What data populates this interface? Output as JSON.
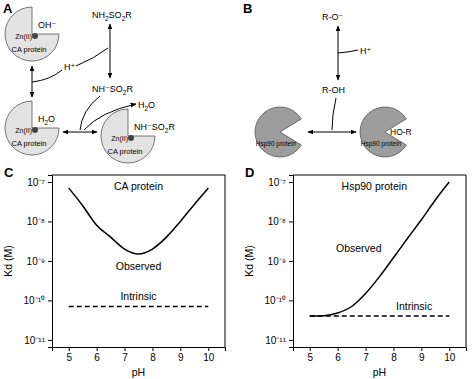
{
  "chart_data": [
    {
      "type": "line",
      "panel": "C",
      "title": "CA protein",
      "x_label": "pH",
      "y_label": "Kd (M)",
      "log": "y",
      "x": [
        5,
        5.5,
        6,
        6.5,
        7,
        7.5,
        8,
        8.5,
        9,
        9.5,
        10
      ],
      "series": [
        {
          "name": "Observed",
          "color": "#000000",
          "line_style": "solid",
          "values": [
            7e-08,
            2.5e-08,
            8e-09,
            4e-09,
            2e-09,
            1.5e-09,
            2e-09,
            4e-09,
            1e-08,
            2.7e-08,
            7e-08
          ]
        },
        {
          "name": "Intrinsic",
          "color": "#000000",
          "line_style": "dashed",
          "values": [
            7e-11,
            7e-11,
            7e-11,
            7e-11,
            7e-11,
            7e-11,
            7e-11,
            7e-11,
            7e-11,
            7e-11,
            7e-11
          ]
        }
      ],
      "xlim": [
        4.4,
        10.6
      ],
      "ylim": [
        6.6e-12,
        1.5e-07
      ],
      "xticks": [
        5,
        6,
        7,
        8,
        9,
        10
      ],
      "yticks": [
        {
          "value": 1e-11,
          "label": "10⁻¹¹"
        },
        {
          "value": 1e-10,
          "label": "10⁻¹⁰"
        },
        {
          "value": 1e-09,
          "label": "10⁻⁹"
        },
        {
          "value": 1e-08,
          "label": "10⁻⁸"
        },
        {
          "value": 1e-07,
          "label": "10⁻⁷"
        }
      ]
    },
    {
      "type": "line",
      "panel": "D",
      "title": "Hsp90 protein",
      "x_label": "pH",
      "y_label": "Kd (M)",
      "log": "y",
      "x": [
        5,
        5.5,
        6,
        6.5,
        7,
        7.5,
        8,
        8.5,
        9,
        9.5,
        10
      ],
      "series": [
        {
          "name": "Observed",
          "color": "#000000",
          "line_style": "solid",
          "values": [
            4e-11,
            4.1e-11,
            4.8e-11,
            7e-11,
            1.5e-10,
            4e-10,
            1.2e-09,
            3.7e-09,
            1.1e-08,
            3.5e-08,
            1e-07
          ]
        },
        {
          "name": "Intrinsic",
          "color": "#000000",
          "line_style": "dashed",
          "values": [
            4e-11,
            4e-11,
            4e-11,
            4e-11,
            4e-11,
            4e-11,
            4e-11,
            4e-11,
            4e-11,
            4e-11,
            4e-11
          ]
        }
      ],
      "xlim": [
        4.4,
        10.6
      ],
      "ylim": [
        6.6e-12,
        1.5e-07
      ],
      "xticks": [
        5,
        6,
        7,
        8,
        9,
        10
      ],
      "yticks": [
        {
          "value": 1e-11,
          "label": "10⁻¹¹"
        },
        {
          "value": 1e-10,
          "label": "10⁻¹⁰"
        },
        {
          "value": 1e-09,
          "label": "10⁻⁹"
        },
        {
          "value": 1e-08,
          "label": "10⁻⁸"
        },
        {
          "value": 1e-07,
          "label": "10⁻⁷"
        }
      ]
    }
  ],
  "diagrams": [
    {
      "panel": "A",
      "protein": "CA protein",
      "metal": "Zn(II)",
      "free_site_ligand": "OH⁻",
      "proton": "H⁺",
      "ligand_neutral": "NH2SO2R",
      "ligand_anion": "NH⁻SO2R",
      "bound_water": "H2O",
      "released_water": "H2O",
      "bound_ligand": "NH⁻SO2R"
    },
    {
      "panel": "B",
      "protein": "Hsp90 protein",
      "ligand_anion": "R-O⁻",
      "proton": "H⁺",
      "ligand_neutral": "R-OH",
      "bound_ligand": "HO-R"
    }
  ]
}
